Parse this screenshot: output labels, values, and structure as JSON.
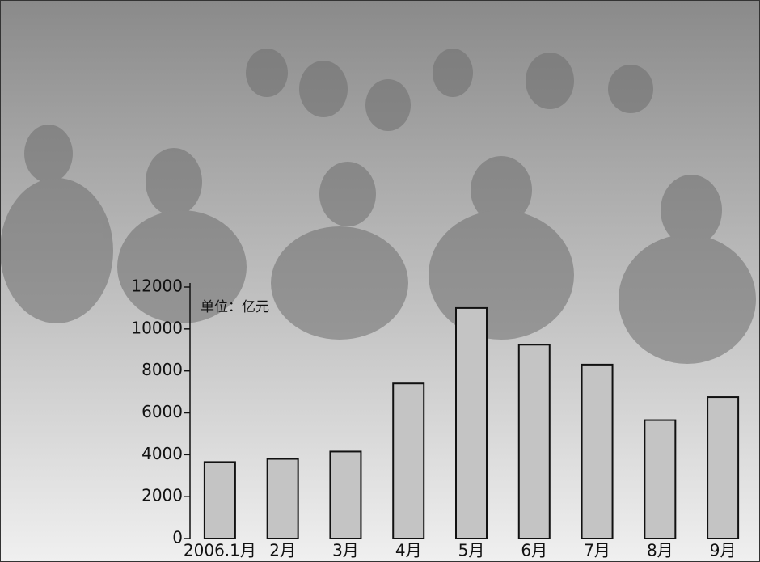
{
  "chart_data": {
    "type": "bar",
    "unit_label": "单位：亿元",
    "categories": [
      "2006.1月",
      "2月",
      "3月",
      "4月",
      "5月",
      "6月",
      "7月",
      "8月",
      "9月"
    ],
    "values": [
      3650,
      3800,
      4150,
      7400,
      11000,
      9250,
      8300,
      5650,
      6750
    ],
    "color": "#c4c4c4",
    "ylim": [
      0,
      12000
    ],
    "yticks": [
      0,
      2000,
      4000,
      6000,
      8000,
      10000,
      12000
    ]
  }
}
